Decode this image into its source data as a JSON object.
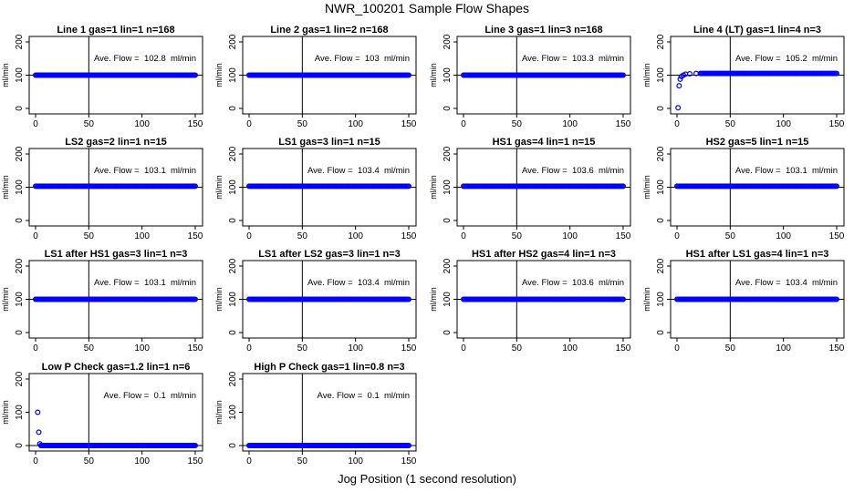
{
  "figure": {
    "title": "NWR_100201  Sample Flow Shapes",
    "xlabel": "Jog Position (1 second resolution)"
  },
  "colors": {
    "points": "#0000ff",
    "axes": "#000000",
    "background": "#ffffff"
  },
  "chart_data": [
    {
      "type": "scatter",
      "title": "Line 1 gas=1 lin=1 n=168",
      "annotation": "Ave. Flow =  102.8  ml/min",
      "ylabel": "ml/min",
      "xlim": [
        0,
        150
      ],
      "ylim": [
        0,
        200
      ],
      "xticks": [
        0,
        50,
        100,
        150
      ],
      "yticks": [
        0,
        100,
        200
      ],
      "hline": 100,
      "vline": 50,
      "flat_value": 100,
      "start_points": []
    },
    {
      "type": "scatter",
      "title": "Line 2 gas=1 lin=2 n=168",
      "annotation": "Ave. Flow =  103  ml/min",
      "ylabel": "ml/min",
      "xlim": [
        0,
        150
      ],
      "ylim": [
        0,
        200
      ],
      "xticks": [
        0,
        50,
        100,
        150
      ],
      "yticks": [
        0,
        100,
        200
      ],
      "hline": 100,
      "vline": 50,
      "flat_value": 100,
      "start_points": []
    },
    {
      "type": "scatter",
      "title": "Line 3 gas=1 lin=3 n=168",
      "annotation": "Ave. Flow =  103.3  ml/min",
      "ylabel": "ml/min",
      "xlim": [
        0,
        150
      ],
      "ylim": [
        0,
        200
      ],
      "xticks": [
        0,
        50,
        100,
        150
      ],
      "yticks": [
        0,
        100,
        200
      ],
      "hline": 100,
      "vline": 50,
      "flat_value": 100,
      "start_points": []
    },
    {
      "type": "scatter",
      "title": "Line 4 (LT) gas=1 lin=4 n=3",
      "annotation": "Ave. Flow =  105.2  ml/min",
      "ylabel": "ml/min",
      "xlim": [
        0,
        150
      ],
      "ylim": [
        0,
        200
      ],
      "xticks": [
        0,
        50,
        100,
        150
      ],
      "yticks": [
        0,
        100,
        200
      ],
      "hline": 100,
      "vline": 50,
      "flat_value": 105,
      "start_points": [
        [
          1,
          2
        ],
        [
          2,
          68
        ],
        [
          3,
          88
        ],
        [
          4,
          96
        ],
        [
          6,
          100
        ],
        [
          8,
          103
        ],
        [
          12,
          104
        ],
        [
          18,
          105
        ],
        [
          22,
          105
        ]
      ]
    },
    {
      "type": "scatter",
      "title": "LS2 gas=2 lin=1 n=15",
      "annotation": "Ave. Flow =  103.1  ml/min",
      "ylabel": "ml/min",
      "xlim": [
        0,
        150
      ],
      "ylim": [
        0,
        200
      ],
      "xticks": [
        0,
        50,
        100,
        150
      ],
      "yticks": [
        0,
        100,
        200
      ],
      "hline": 100,
      "vline": 50,
      "flat_value": 103,
      "start_points": []
    },
    {
      "type": "scatter",
      "title": "LS1 gas=3 lin=1 n=15",
      "annotation": "Ave. Flow =  103.4  ml/min",
      "ylabel": "ml/min",
      "xlim": [
        0,
        150
      ],
      "ylim": [
        0,
        200
      ],
      "xticks": [
        0,
        50,
        100,
        150
      ],
      "yticks": [
        0,
        100,
        200
      ],
      "hline": 100,
      "vline": 50,
      "flat_value": 103,
      "start_points": []
    },
    {
      "type": "scatter",
      "title": "HS1 gas=4 lin=1 n=15",
      "annotation": "Ave. Flow =  103.6  ml/min",
      "ylabel": "ml/min",
      "xlim": [
        0,
        150
      ],
      "ylim": [
        0,
        200
      ],
      "xticks": [
        0,
        50,
        100,
        150
      ],
      "yticks": [
        0,
        100,
        200
      ],
      "hline": 100,
      "vline": 50,
      "flat_value": 103,
      "start_points": []
    },
    {
      "type": "scatter",
      "title": "HS2 gas=5 lin=1 n=15",
      "annotation": "Ave. Flow =  103.1  ml/min",
      "ylabel": "ml/min",
      "xlim": [
        0,
        150
      ],
      "ylim": [
        0,
        200
      ],
      "xticks": [
        0,
        50,
        100,
        150
      ],
      "yticks": [
        0,
        100,
        200
      ],
      "hline": 100,
      "vline": 50,
      "flat_value": 103,
      "start_points": []
    },
    {
      "type": "scatter",
      "title": "LS1 after HS1 gas=3 lin=1 n=3",
      "annotation": "Ave. Flow =  103.1  ml/min",
      "ylabel": "ml/min",
      "xlim": [
        0,
        150
      ],
      "ylim": [
        0,
        200
      ],
      "xticks": [
        0,
        50,
        100,
        150
      ],
      "yticks": [
        0,
        100,
        200
      ],
      "hline": 100,
      "vline": 50,
      "flat_value": 100,
      "start_points": []
    },
    {
      "type": "scatter",
      "title": "LS1 after LS2 gas=3 lin=1 n=3",
      "annotation": "Ave. Flow =  103.4  ml/min",
      "ylabel": "ml/min",
      "xlim": [
        0,
        150
      ],
      "ylim": [
        0,
        200
      ],
      "xticks": [
        0,
        50,
        100,
        150
      ],
      "yticks": [
        0,
        100,
        200
      ],
      "hline": 100,
      "vline": 50,
      "flat_value": 100,
      "start_points": []
    },
    {
      "type": "scatter",
      "title": "HS1 after HS2 gas=4 lin=1 n=3",
      "annotation": "Ave. Flow =  103.6  ml/min",
      "ylabel": "ml/min",
      "xlim": [
        0,
        150
      ],
      "ylim": [
        0,
        200
      ],
      "xticks": [
        0,
        50,
        100,
        150
      ],
      "yticks": [
        0,
        100,
        200
      ],
      "hline": 100,
      "vline": 50,
      "flat_value": 100,
      "start_points": []
    },
    {
      "type": "scatter",
      "title": "HS1 after LS1 gas=4 lin=1 n=3",
      "annotation": "Ave. Flow =  103.4  ml/min",
      "ylabel": "ml/min",
      "xlim": [
        0,
        150
      ],
      "ylim": [
        0,
        200
      ],
      "xticks": [
        0,
        50,
        100,
        150
      ],
      "yticks": [
        0,
        100,
        200
      ],
      "hline": 100,
      "vline": 50,
      "flat_value": 100,
      "start_points": []
    },
    {
      "type": "scatter",
      "title": "Low P Check gas=1.2 lin=1 n=6",
      "annotation": "Ave. Flow =  0.1  ml/min",
      "ylabel": "ml/min",
      "xlim": [
        0,
        150
      ],
      "ylim": [
        0,
        200
      ],
      "xticks": [
        0,
        50,
        100,
        150
      ],
      "yticks": [
        0,
        100,
        200
      ],
      "hline": 0,
      "vline": 50,
      "flat_value": 0,
      "start_points": [
        [
          2,
          100
        ],
        [
          3,
          40
        ],
        [
          4,
          5
        ]
      ]
    },
    {
      "type": "scatter",
      "title": "High P Check gas=1 lin=0.8 n=3",
      "annotation": "Ave. Flow =  0.1  ml/min",
      "ylabel": "ml/min",
      "xlim": [
        0,
        150
      ],
      "ylim": [
        0,
        200
      ],
      "xticks": [
        0,
        50,
        100,
        150
      ],
      "yticks": [
        0,
        100,
        200
      ],
      "hline": 0,
      "vline": 50,
      "flat_value": 0,
      "start_points": []
    }
  ]
}
